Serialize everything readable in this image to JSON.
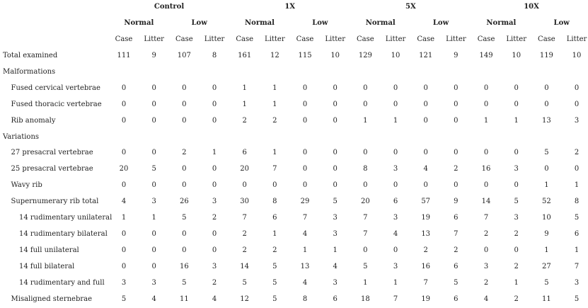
{
  "table": {
    "groups": [
      {
        "label": "Control",
        "subgroups": [
          {
            "label": "Normal",
            "columns": [
              "Case",
              "Litter"
            ]
          },
          {
            "label": "Low",
            "columns": [
              "Case",
              "Litter"
            ]
          }
        ]
      },
      {
        "label": "1X",
        "subgroups": [
          {
            "label": "Normal",
            "columns": [
              "Case",
              "Litter"
            ]
          },
          {
            "label": "Low",
            "columns": [
              "Case",
              "Litter"
            ]
          }
        ]
      },
      {
        "label": "5X",
        "subgroups": [
          {
            "label": "Normal",
            "columns": [
              "Case",
              "Litter"
            ]
          },
          {
            "label": "Low",
            "columns": [
              "Case",
              "Litter"
            ]
          }
        ]
      },
      {
        "label": "10X",
        "subgroups": [
          {
            "label": "Normal",
            "columns": [
              "Case",
              "Litter"
            ]
          },
          {
            "label": "Low",
            "columns": [
              "Case",
              "Litter"
            ]
          }
        ]
      }
    ],
    "total": {
      "label": "Total examined",
      "values": [
        111,
        9,
        107,
        8,
        161,
        12,
        115,
        10,
        129,
        10,
        121,
        9,
        149,
        10,
        119,
        10
      ]
    },
    "sections": [
      {
        "label": "Malformations",
        "rows": [
          {
            "label": "Fused cervical vertebrae",
            "values": [
              0,
              0,
              0,
              0,
              1,
              1,
              0,
              0,
              0,
              0,
              0,
              0,
              0,
              0,
              0,
              0
            ]
          },
          {
            "label": "Fused thoracic vertebrae",
            "values": [
              0,
              0,
              0,
              0,
              1,
              1,
              0,
              0,
              0,
              0,
              0,
              0,
              0,
              0,
              0,
              0
            ]
          },
          {
            "label": "Rib anomaly",
            "values": [
              0,
              0,
              0,
              0,
              2,
              2,
              0,
              0,
              1,
              1,
              0,
              0,
              1,
              1,
              13,
              3
            ]
          }
        ]
      },
      {
        "label": "Variations",
        "rows": [
          {
            "label": "27 presacral vertebrae",
            "values": [
              0,
              0,
              2,
              1,
              6,
              1,
              0,
              0,
              0,
              0,
              0,
              0,
              0,
              0,
              5,
              2
            ]
          },
          {
            "label": "25 presacral vertebrae",
            "values": [
              20,
              5,
              0,
              0,
              20,
              7,
              0,
              0,
              8,
              3,
              4,
              2,
              16,
              3,
              0,
              0
            ]
          },
          {
            "label": "Wavy rib",
            "values": [
              0,
              0,
              0,
              0,
              0,
              0,
              0,
              0,
              0,
              0,
              0,
              0,
              0,
              0,
              1,
              1
            ]
          },
          {
            "label": "Supernumerary rib total",
            "values": [
              4,
              3,
              26,
              3,
              30,
              8,
              29,
              5,
              20,
              6,
              57,
              9,
              14,
              5,
              52,
              8
            ],
            "rows": [
              {
                "label": "14 rudimentary unilateral",
                "values": [
                  1,
                  1,
                  5,
                  2,
                  7,
                  6,
                  7,
                  3,
                  7,
                  3,
                  19,
                  6,
                  7,
                  3,
                  10,
                  5
                ]
              },
              {
                "label": "14 rudimentary bilateral",
                "values": [
                  0,
                  0,
                  0,
                  0,
                  2,
                  1,
                  4,
                  3,
                  7,
                  4,
                  13,
                  7,
                  2,
                  2,
                  9,
                  6
                ]
              },
              {
                "label": "14 full unilateral",
                "values": [
                  0,
                  0,
                  0,
                  0,
                  2,
                  2,
                  1,
                  1,
                  0,
                  0,
                  2,
                  2,
                  0,
                  0,
                  1,
                  1
                ]
              },
              {
                "label": "14 full bilateral",
                "values": [
                  0,
                  0,
                  16,
                  3,
                  14,
                  5,
                  13,
                  4,
                  5,
                  3,
                  16,
                  6,
                  3,
                  2,
                  27,
                  7
                ]
              },
              {
                "label": "14 rudimentary and full",
                "values": [
                  3,
                  3,
                  5,
                  2,
                  5,
                  5,
                  4,
                  3,
                  1,
                  1,
                  7,
                  5,
                  2,
                  1,
                  5,
                  3
                ]
              }
            ]
          },
          {
            "label": "Misaligned sternebrae",
            "values": [
              5,
              4,
              11,
              4,
              12,
              5,
              8,
              6,
              18,
              7,
              19,
              6,
              4,
              2,
              11,
              5
            ]
          }
        ]
      }
    ]
  }
}
